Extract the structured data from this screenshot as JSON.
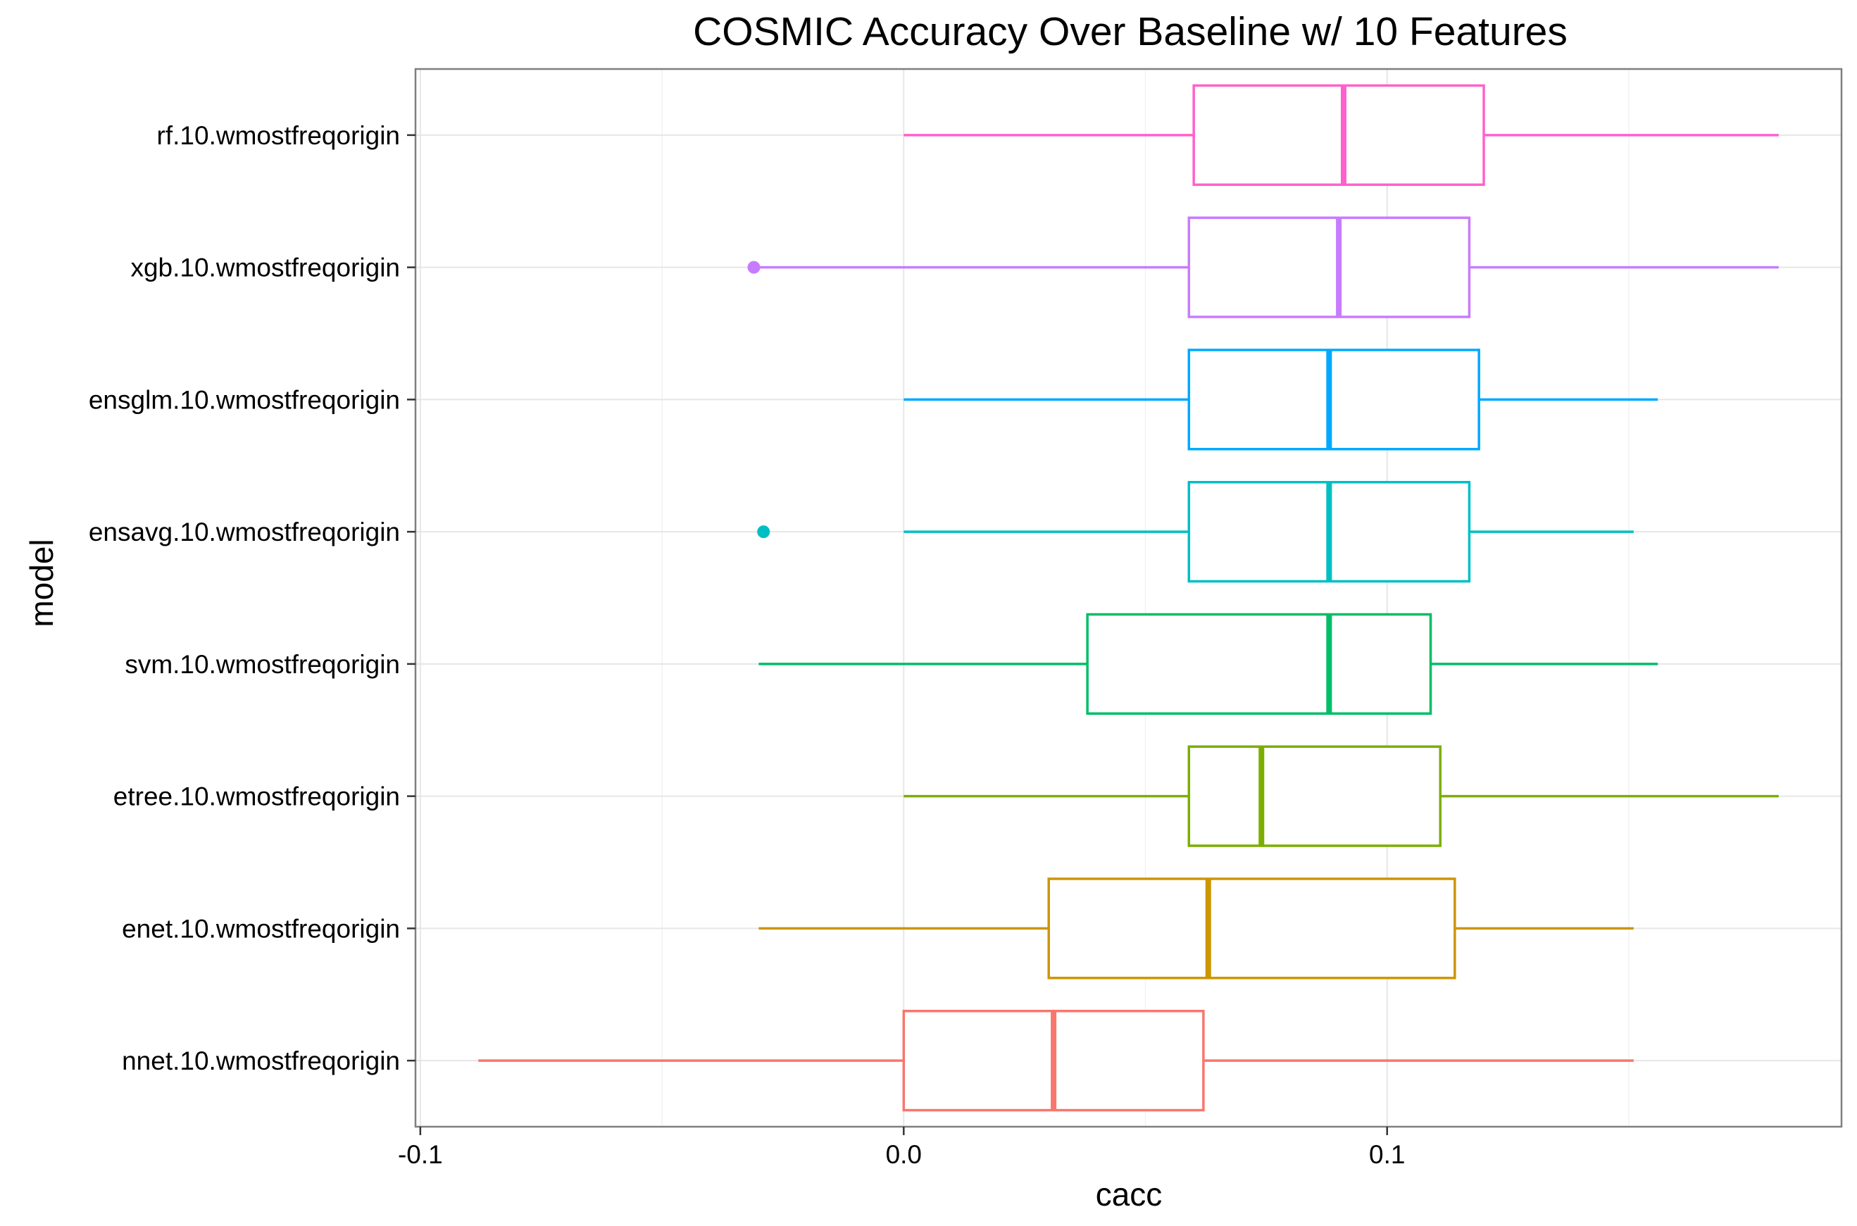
{
  "chart_data": {
    "type": "boxplot",
    "orientation": "horizontal",
    "title": "COSMIC Accuracy Over Baseline w/ 10 Features",
    "xlabel": "cacc",
    "ylabel": "model",
    "xlim": [
      -0.101,
      0.194
    ],
    "xticks": [
      -0.1,
      0.0,
      0.1
    ],
    "xtick_labels": [
      "-0.1",
      "0.0",
      "0.1"
    ],
    "grid": true,
    "legend": "none",
    "series": [
      {
        "model": "nnet.10.wmostfreqorigin",
        "color": "#F8766D",
        "whisker_low": -0.088,
        "q1": 0.0,
        "median": 0.031,
        "q3": 0.062,
        "whisker_high": 0.151,
        "outliers": []
      },
      {
        "model": "enet.10.wmostfreqorigin",
        "color": "#CD9600",
        "whisker_low": -0.03,
        "q1": 0.03,
        "median": 0.063,
        "q3": 0.114,
        "whisker_high": 0.151,
        "outliers": []
      },
      {
        "model": "etree.10.wmostfreqorigin",
        "color": "#7CAE00",
        "whisker_low": 0.0,
        "q1": 0.059,
        "median": 0.074,
        "q3": 0.111,
        "whisker_high": 0.181,
        "outliers": []
      },
      {
        "model": "svm.10.wmostfreqorigin",
        "color": "#00BE67",
        "whisker_low": -0.03,
        "q1": 0.038,
        "median": 0.088,
        "q3": 0.109,
        "whisker_high": 0.156,
        "outliers": []
      },
      {
        "model": "ensavg.10.wmostfreqorigin",
        "color": "#00BFC4",
        "whisker_low": 0.0,
        "q1": 0.059,
        "median": 0.088,
        "q3": 0.117,
        "whisker_high": 0.151,
        "outliers": [
          -0.029
        ]
      },
      {
        "model": "ensglm.10.wmostfreqorigin",
        "color": "#00A9FF",
        "whisker_low": 0.0,
        "q1": 0.059,
        "median": 0.088,
        "q3": 0.119,
        "whisker_high": 0.156,
        "outliers": []
      },
      {
        "model": "xgb.10.wmostfreqorigin",
        "color": "#C77CFF",
        "whisker_low": -0.031,
        "q1": 0.059,
        "median": 0.09,
        "q3": 0.117,
        "whisker_high": 0.181,
        "outliers": [
          -0.031
        ]
      },
      {
        "model": "rf.10.wmostfreqorigin",
        "color": "#FF61CC",
        "whisker_low": 0.0,
        "q1": 0.06,
        "median": 0.091,
        "q3": 0.12,
        "whisker_high": 0.181,
        "outliers": []
      }
    ]
  }
}
